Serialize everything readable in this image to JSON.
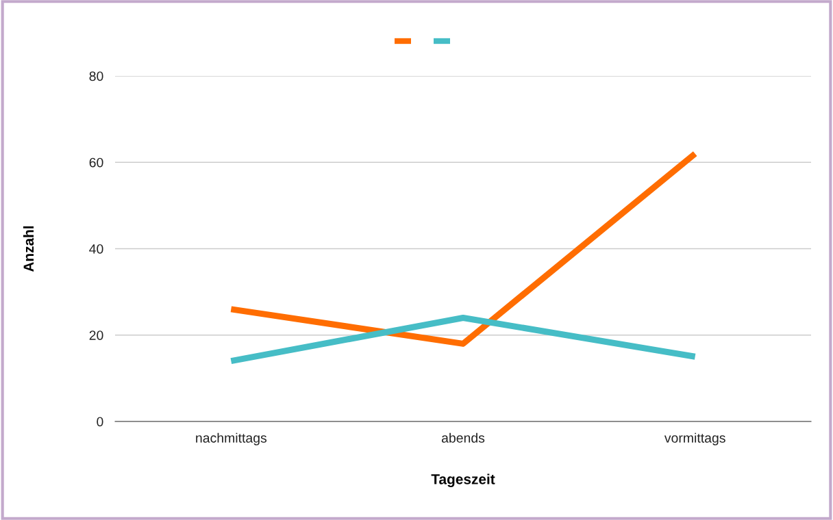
{
  "chart_data": {
    "type": "line",
    "xlabel": "Tageszeit",
    "ylabel": "Anzahl",
    "categories": [
      "nachmittags",
      "abends",
      "vormittags"
    ],
    "series": [
      {
        "color": "#ff6d01",
        "values": [
          26,
          18,
          62
        ]
      },
      {
        "color": "#46bdc6",
        "values": [
          14,
          24,
          15
        ]
      }
    ],
    "ylim": [
      0,
      80
    ],
    "yticks": [
      0,
      20,
      40,
      60,
      80
    ],
    "grid": "y",
    "marker": "none",
    "line_style": "solid"
  }
}
